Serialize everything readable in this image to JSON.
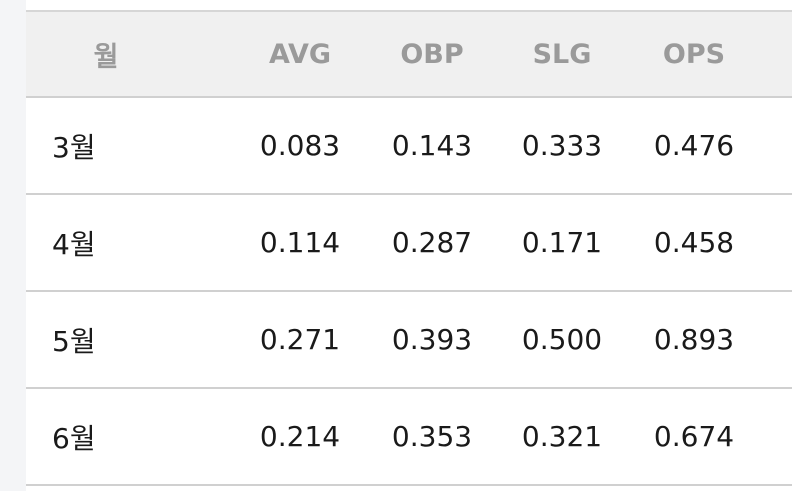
{
  "table": {
    "header": [
      "월",
      "AVG",
      "OBP",
      "SLG",
      "OPS"
    ],
    "rows": [
      [
        "3월",
        "0.083",
        "0.143",
        "0.333",
        "0.476"
      ],
      [
        "4월",
        "0.114",
        "0.287",
        "0.171",
        "0.458"
      ],
      [
        "5월",
        "0.271",
        "0.393",
        "0.500",
        "0.893"
      ],
      [
        "6월",
        "0.214",
        "0.353",
        "0.321",
        "0.674"
      ]
    ]
  }
}
